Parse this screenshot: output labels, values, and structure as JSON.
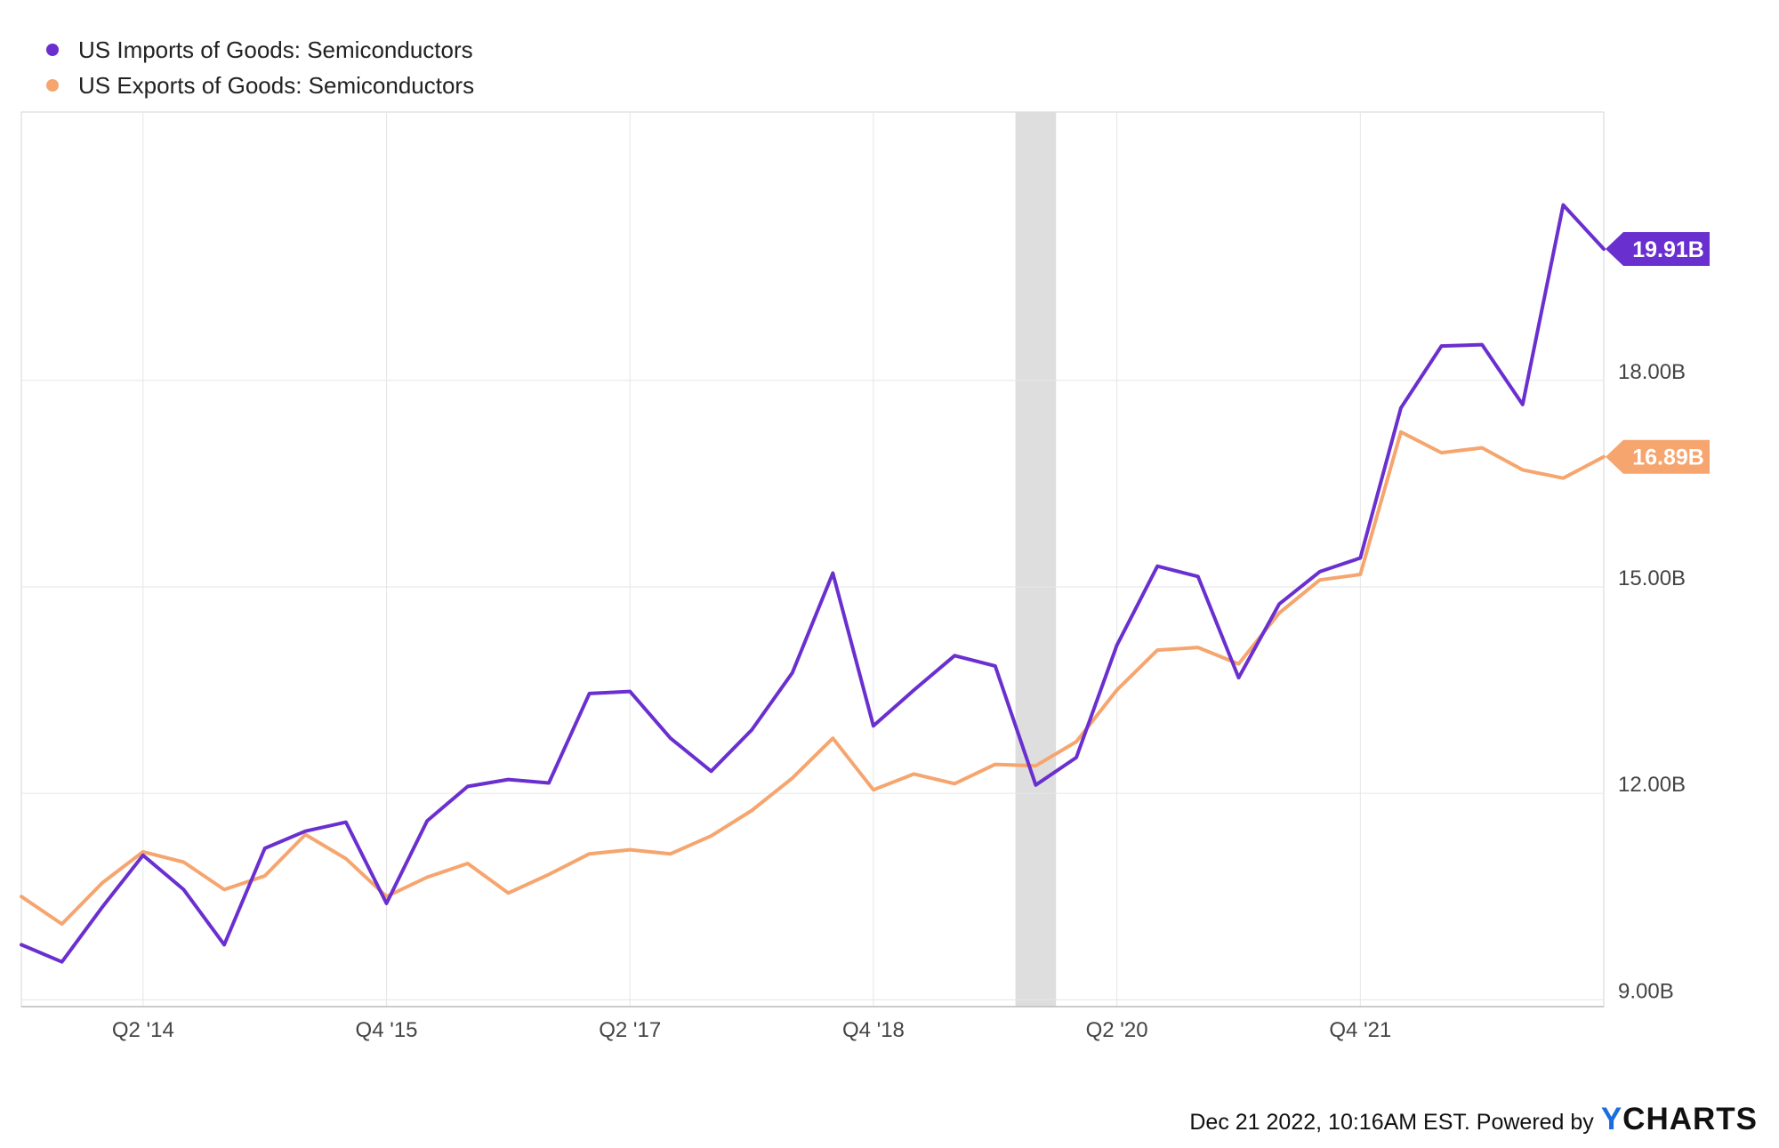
{
  "chart_data": {
    "type": "line",
    "x_ticks": [
      "Q2 '14",
      "Q4 '15",
      "Q2 '17",
      "Q4 '18",
      "Q2 '20",
      "Q4 '21"
    ],
    "y_ticks": [
      "9.00B",
      "12.00B",
      "15.00B",
      "18.00B"
    ],
    "ylim": [
      8.9,
      21.9
    ],
    "y_tick_values": [
      9,
      12,
      15,
      18
    ],
    "grid": true,
    "legend_position": "top-left",
    "shaded_period": {
      "from": "Q4 '19",
      "to": "Q1 '20"
    },
    "series": [
      {
        "name": "US Imports of Goods: Semiconductors",
        "color": "#6a2fcf",
        "last_label": "19.91B",
        "last_value": 19.91,
        "points": [
          [
            "Q3 '13",
            9.8
          ],
          [
            "Q4 '13",
            9.55
          ],
          [
            "Q1 '14",
            10.35
          ],
          [
            "Q2 '14",
            11.1
          ],
          [
            "Q3 '14",
            10.6
          ],
          [
            "Q4 '14",
            9.8
          ],
          [
            "Q1 '15",
            11.2
          ],
          [
            "Q2 '15",
            11.45
          ],
          [
            "Q3 '15",
            11.58
          ],
          [
            "Q4 '15",
            10.4
          ],
          [
            "Q1 '16",
            11.6
          ],
          [
            "Q2 '16",
            12.1
          ],
          [
            "Q3 '16",
            12.2
          ],
          [
            "Q4 '16",
            12.15
          ],
          [
            "Q1 '17",
            13.45
          ],
          [
            "Q2 '17",
            13.48
          ],
          [
            "Q3 '17",
            12.8
          ],
          [
            "Q4 '17",
            12.32
          ],
          [
            "Q1 '18",
            12.92
          ],
          [
            "Q2 '18",
            13.75
          ],
          [
            "Q3 '18",
            15.2
          ],
          [
            "Q4 '18",
            12.98
          ],
          [
            "Q1 '19",
            13.5
          ],
          [
            "Q2 '19",
            14.0
          ],
          [
            "Q3 '19",
            13.85
          ],
          [
            "Q4 '19",
            12.12
          ],
          [
            "Q1 '20",
            12.52
          ],
          [
            "Q2 '20",
            14.15
          ],
          [
            "Q3 '20",
            15.3
          ],
          [
            "Q4 '20",
            15.15
          ],
          [
            "Q1 '21",
            13.68
          ],
          [
            "Q2 '21",
            14.75
          ],
          [
            "Q3 '21",
            15.22
          ],
          [
            "Q4 '21",
            15.42
          ],
          [
            "Q1 '22",
            17.6
          ],
          [
            "Q2 '22",
            18.5
          ],
          [
            "Q3 '22",
            18.52
          ],
          [
            "Q4 '22",
            17.65
          ],
          [
            "Q1 '23",
            20.55
          ],
          [
            "Q2 '23",
            19.91
          ]
        ]
      },
      {
        "name": "US Exports of Goods: Semiconductors",
        "color": "#f6a56e",
        "last_label": "16.89B",
        "last_value": 16.89,
        "points": [
          [
            "Q3 '13",
            10.5
          ],
          [
            "Q4 '13",
            10.1
          ],
          [
            "Q1 '14",
            10.7
          ],
          [
            "Q2 '14",
            11.15
          ],
          [
            "Q3 '14",
            11.0
          ],
          [
            "Q4 '14",
            10.6
          ],
          [
            "Q1 '15",
            10.8
          ],
          [
            "Q2 '15",
            11.4
          ],
          [
            "Q3 '15",
            11.05
          ],
          [
            "Q4 '15",
            10.5
          ],
          [
            "Q1 '16",
            10.78
          ],
          [
            "Q2 '16",
            10.98
          ],
          [
            "Q3 '16",
            10.55
          ],
          [
            "Q4 '16",
            10.82
          ],
          [
            "Q1 '17",
            11.12
          ],
          [
            "Q2 '17",
            11.18
          ],
          [
            "Q3 '17",
            11.12
          ],
          [
            "Q4 '17",
            11.38
          ],
          [
            "Q1 '18",
            11.75
          ],
          [
            "Q2 '18",
            12.22
          ],
          [
            "Q3 '18",
            12.8
          ],
          [
            "Q4 '18",
            12.05
          ],
          [
            "Q1 '19",
            12.28
          ],
          [
            "Q2 '19",
            12.14
          ],
          [
            "Q3 '19",
            12.42
          ],
          [
            "Q4 '19",
            12.4
          ],
          [
            "Q1 '20",
            12.75
          ],
          [
            "Q2 '20",
            13.5
          ],
          [
            "Q3 '20",
            14.08
          ],
          [
            "Q4 '20",
            14.12
          ],
          [
            "Q1 '21",
            13.88
          ],
          [
            "Q2 '21",
            14.62
          ],
          [
            "Q3 '21",
            15.1
          ],
          [
            "Q4 '21",
            15.18
          ],
          [
            "Q1 '22",
            17.25
          ],
          [
            "Q2 '22",
            16.95
          ],
          [
            "Q3 '22",
            17.02
          ],
          [
            "Q4 '22",
            16.7
          ],
          [
            "Q1 '23",
            16.58
          ],
          [
            "Q2 '23",
            16.89
          ]
        ]
      }
    ]
  },
  "footer": {
    "text": "Dec 21 2022, 10:16AM EST. Powered by",
    "logo_prefix": "Y",
    "logo_rest": "CHARTS"
  }
}
